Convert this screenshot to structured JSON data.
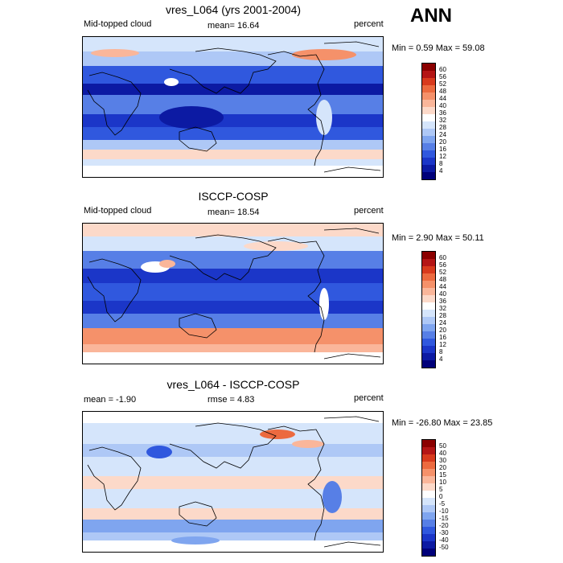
{
  "season": "ANN",
  "panels": [
    {
      "title": "vres_L064 (yrs 2001-2004)",
      "left_label": "Mid-topped cloud",
      "center_label": "mean=  16.64",
      "units": "percent",
      "minmax": "Min =   0.59 Max =  59.08",
      "colorbar": {
        "ticks": [
          "60",
          "56",
          "52",
          "48",
          "44",
          "40",
          "36",
          "32",
          "28",
          "24",
          "20",
          "16",
          "12",
          "8",
          "4"
        ],
        "colors": [
          "#8b0000",
          "#b41515",
          "#d83a1d",
          "#ec6a3f",
          "#f5916a",
          "#fab69a",
          "#fcd9c9",
          "#ffffff",
          "#d5e5fb",
          "#aec8f6",
          "#7fa5ef",
          "#577fe6",
          "#3058de",
          "#1b36c8",
          "#0c1aa3",
          "#00007a"
        ]
      },
      "field": "mid1"
    },
    {
      "title": "ISCCP-COSP",
      "left_label": "Mid-topped cloud",
      "center_label": "mean=  18.54",
      "units": "percent",
      "minmax": "Min =   2.90 Max =  50.11",
      "colorbar": {
        "ticks": [
          "60",
          "56",
          "52",
          "48",
          "44",
          "40",
          "36",
          "32",
          "28",
          "24",
          "20",
          "16",
          "12",
          "8",
          "4"
        ],
        "colors": [
          "#8b0000",
          "#b41515",
          "#d83a1d",
          "#ec6a3f",
          "#f5916a",
          "#fab69a",
          "#fcd9c9",
          "#ffffff",
          "#d5e5fb",
          "#aec8f6",
          "#7fa5ef",
          "#577fe6",
          "#3058de",
          "#1b36c8",
          "#0c1aa3",
          "#00007a"
        ]
      },
      "field": "mid2"
    },
    {
      "title": "vres_L064 - ISCCP-COSP",
      "left_label": "mean =  -1.90",
      "center_label": "rmse =   4.83",
      "units": "percent",
      "minmax": "Min = -26.80 Max =  23.85",
      "colorbar": {
        "ticks": [
          "50",
          "40",
          "30",
          "20",
          "15",
          "10",
          "5",
          "0",
          "-5",
          "-10",
          "-15",
          "-20",
          "-30",
          "-40",
          "-50"
        ],
        "colors": [
          "#8b0000",
          "#b41515",
          "#d83a1d",
          "#ec6a3f",
          "#f5916a",
          "#fab69a",
          "#fcd9c9",
          "#ffffff",
          "#d5e5fb",
          "#aec8f6",
          "#7fa5ef",
          "#577fe6",
          "#3058de",
          "#1b36c8",
          "#0c1aa3",
          "#00007a"
        ]
      },
      "field": "diff"
    }
  ]
}
